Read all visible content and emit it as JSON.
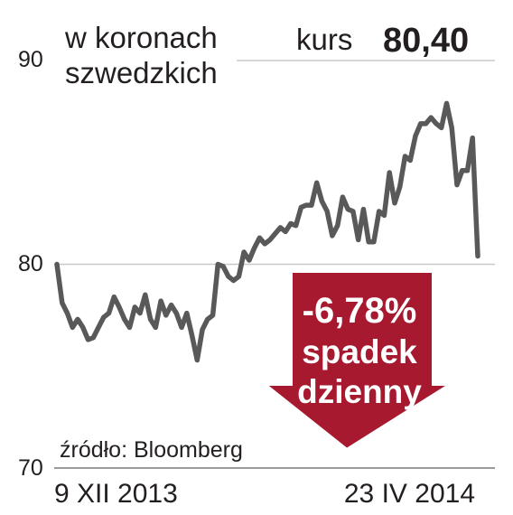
{
  "chart_data": {
    "type": "line",
    "unit_label_line1": "w koronach",
    "unit_label_line2": "szwedzkich",
    "kurs_label": "kurs",
    "kurs_value": "80,40",
    "y_ticks": [
      "90",
      "80",
      "70"
    ],
    "ylim": [
      70,
      90
    ],
    "x_start_label": "9 XII 2013",
    "x_end_label": "23 IV 2014",
    "source": "źródło: Bloomberg",
    "badge": {
      "line1": "-6,78%",
      "line2": "spadek",
      "line3": "dzienny"
    },
    "colors": {
      "line": "#595959",
      "badge": "#a6192e",
      "text": "#231f20",
      "grid": "#c8c8c8"
    },
    "series": [
      {
        "values": [
          80.0,
          78.1,
          77.6,
          76.9,
          77.3,
          76.9,
          76.3,
          76.4,
          76.9,
          77.4,
          77.6,
          78.4,
          77.9,
          77.3,
          76.9,
          77.9,
          77.6,
          78.5,
          77.3,
          76.9,
          78.2,
          77.5,
          78.0,
          77.6,
          76.9,
          77.6,
          76.5,
          75.3,
          76.8,
          77.3,
          77.5,
          80.0,
          79.9,
          79.4,
          79.2,
          79.4,
          80.6,
          80.2,
          80.8,
          81.3,
          81.0,
          81.2,
          81.5,
          81.8,
          81.6,
          82.0,
          81.9,
          82.8,
          82.9,
          82.9,
          84.0,
          83.1,
          82.6,
          81.4,
          81.9,
          83.3,
          82.7,
          82.6,
          81.2,
          82.7,
          81.1,
          81.1,
          82.6,
          82.4,
          84.5,
          83.0,
          83.8,
          85.3,
          85.1,
          86.3,
          86.9,
          86.9,
          87.2,
          86.9,
          86.7,
          87.9,
          86.7,
          83.9,
          84.6,
          84.6,
          86.2,
          80.4
        ]
      }
    ]
  }
}
